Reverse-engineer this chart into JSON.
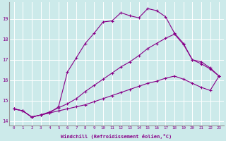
{
  "xlabel": "Windchill (Refroidissement éolien,°C)",
  "bg_color": "#cceaea",
  "line_color": "#880088",
  "grid_color": "#ffffff",
  "xlim": [
    -0.5,
    23.5
  ],
  "ylim": [
    13.8,
    19.8
  ],
  "yticks": [
    14,
    15,
    16,
    17,
    18,
    19
  ],
  "xticks": [
    0,
    1,
    2,
    3,
    4,
    5,
    6,
    7,
    8,
    9,
    10,
    11,
    12,
    13,
    14,
    15,
    16,
    17,
    18,
    19,
    20,
    21,
    22,
    23
  ],
  "series": [
    [
      14.6,
      14.5,
      14.2,
      14.3,
      14.4,
      14.7,
      16.4,
      17.1,
      17.8,
      18.3,
      18.85,
      18.9,
      19.3,
      19.15,
      19.05,
      19.5,
      19.4,
      19.1,
      18.3,
      17.8,
      17.0,
      16.8,
      16.55,
      16.2
    ],
    [
      14.6,
      14.5,
      14.2,
      14.3,
      14.4,
      14.5,
      14.6,
      14.7,
      14.8,
      14.95,
      15.1,
      15.25,
      15.4,
      15.55,
      15.7,
      15.85,
      15.95,
      16.1,
      16.2,
      16.05,
      15.85,
      15.65,
      15.5,
      16.2
    ],
    [
      14.6,
      14.5,
      14.2,
      14.3,
      14.45,
      14.65,
      14.85,
      15.1,
      15.45,
      15.75,
      16.05,
      16.35,
      16.65,
      16.9,
      17.2,
      17.55,
      17.8,
      18.05,
      18.25,
      17.75,
      17.0,
      16.9,
      16.6,
      16.2
    ]
  ]
}
